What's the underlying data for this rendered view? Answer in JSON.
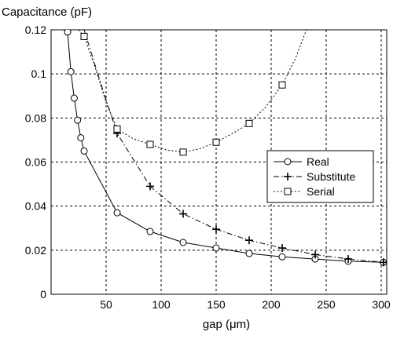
{
  "chart_data": {
    "type": "line",
    "title": "",
    "ylabel": "Capacitance (pF)",
    "xlabel": "gap (μm)",
    "xlim": [
      0,
      305
    ],
    "ylim": [
      0,
      0.12
    ],
    "xticks": [
      0,
      50,
      100,
      150,
      200,
      250,
      300
    ],
    "xtick_labels": [
      "",
      "50",
      "100",
      "150",
      "200",
      "250",
      "300"
    ],
    "yticks": [
      0,
      0.02,
      0.04,
      0.06,
      0.08,
      0.1,
      0.12
    ],
    "ytick_labels": [
      "0",
      "0.02",
      "0.04",
      "0.06",
      "0.08",
      "0.1",
      "0.12"
    ],
    "grid": true,
    "legend_position": "right-middle",
    "series": [
      {
        "name": "Real",
        "marker": "circle",
        "line_style": "solid",
        "x": [
          15,
          18,
          21,
          24,
          27,
          30,
          60,
          90,
          120,
          150,
          180,
          210,
          240,
          270,
          302
        ],
        "y": [
          0.119,
          0.101,
          0.089,
          0.079,
          0.071,
          0.065,
          0.037,
          0.0285,
          0.0235,
          0.021,
          0.0185,
          0.017,
          0.016,
          0.015,
          0.0145
        ]
      },
      {
        "name": "Substitute",
        "marker": "plus",
        "line_style": "dashdot",
        "x": [
          30,
          45,
          60,
          90,
          120,
          150,
          180,
          210,
          240,
          270,
          302
        ],
        "y": [
          0.12,
          0.096,
          0.073,
          0.049,
          0.0365,
          0.0295,
          0.0245,
          0.021,
          0.018,
          0.016,
          0.0145
        ],
        "markers_x": [
          60,
          90,
          120,
          150,
          180,
          210,
          240,
          270,
          302
        ],
        "markers_y": [
          0.073,
          0.049,
          0.0365,
          0.0295,
          0.0245,
          0.021,
          0.018,
          0.016,
          0.0145
        ]
      },
      {
        "name": "Serial",
        "marker": "square",
        "line_style": "dotted",
        "x": [
          25,
          30,
          40,
          50,
          60,
          75,
          90,
          105,
          120,
          135,
          150,
          165,
          180,
          195,
          210,
          222,
          232
        ],
        "y": [
          0.12,
          0.117,
          0.103,
          0.087,
          0.075,
          0.0705,
          0.068,
          0.0655,
          0.0645,
          0.066,
          0.069,
          0.073,
          0.0775,
          0.085,
          0.095,
          0.107,
          0.12
        ],
        "markers_x": [
          30,
          60,
          90,
          120,
          150,
          180,
          210
        ],
        "markers_y": [
          0.117,
          0.075,
          0.068,
          0.0645,
          0.069,
          0.0775,
          0.095
        ]
      }
    ]
  }
}
